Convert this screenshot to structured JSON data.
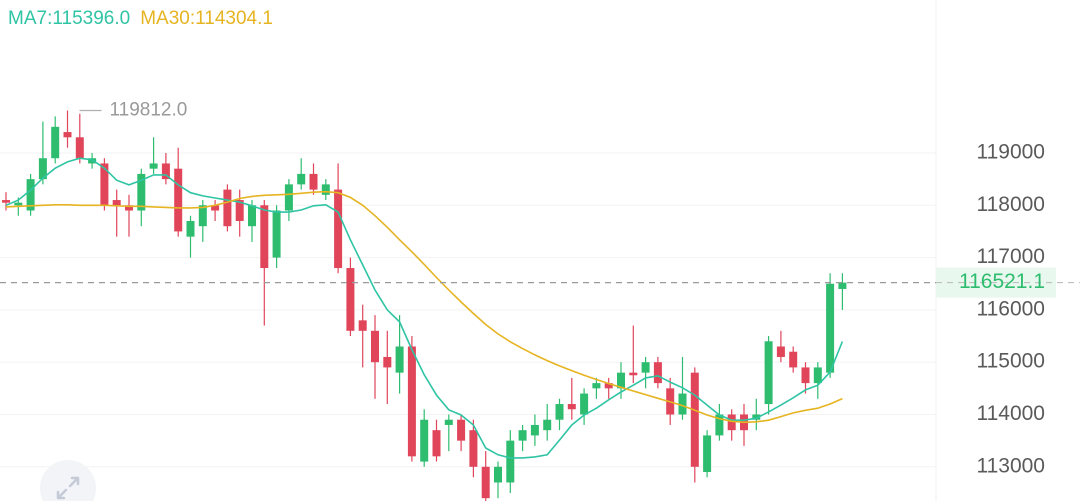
{
  "chart_data": {
    "type": "candlestick",
    "legend": [
      {
        "label": "MA7:115396.0",
        "color": "#2fc4a4"
      },
      {
        "label": "MA30:114304.1",
        "color": "#e6b422"
      }
    ],
    "open": [
      118100,
      118000,
      117900,
      118500,
      118900,
      119400,
      119300,
      118800,
      118800,
      118100,
      118000,
      117900,
      118700,
      118800,
      118700,
      117400,
      117600,
      118000,
      118300,
      118100,
      117600,
      118000,
      117000,
      117900,
      118400,
      118600,
      118200,
      118300,
      116800,
      115800,
      115600,
      115100,
      114800,
      115300,
      113100,
      113700,
      113800,
      113900,
      113700,
      113000,
      112700,
      112700,
      113500,
      113600,
      113700,
      113900,
      114200,
      114000,
      114500,
      114600,
      114500,
      114800,
      114800,
      115000,
      114500,
      114000,
      114800,
      112900,
      113600,
      114000,
      114000,
      113900,
      114200,
      115300,
      115200,
      114900,
      114600,
      114800,
      116400
    ],
    "high": [
      118250,
      118150,
      118600,
      119600,
      119700,
      119812,
      119750,
      119000,
      118900,
      118300,
      118200,
      118700,
      119300,
      119000,
      119100,
      117800,
      118100,
      118100,
      118400,
      118300,
      118100,
      118100,
      118000,
      118500,
      118900,
      118800,
      118500,
      118800,
      117000,
      116100,
      115900,
      115600,
      115900,
      115500,
      114100,
      113900,
      114000,
      114000,
      113900,
      113300,
      113100,
      113700,
      113800,
      114000,
      114200,
      114300,
      114700,
      114500,
      114700,
      114700,
      115000,
      115700,
      115100,
      115100,
      114700,
      115100,
      114900,
      113700,
      114200,
      114100,
      114200,
      114300,
      115500,
      115600,
      115300,
      115000,
      115000,
      116700,
      116700
    ],
    "low": [
      117900,
      117800,
      117800,
      118400,
      118800,
      119100,
      118800,
      118700,
      117900,
      117400,
      117400,
      117600,
      118600,
      118400,
      117400,
      117000,
      117300,
      117700,
      117500,
      117400,
      117300,
      115700,
      116800,
      117700,
      118300,
      118200,
      118100,
      116700,
      115500,
      114900,
      114300,
      114200,
      114400,
      113100,
      113000,
      113100,
      113300,
      113300,
      112800,
      112300,
      112400,
      112500,
      113300,
      113400,
      113500,
      113700,
      113900,
      113800,
      114300,
      114300,
      114300,
      114600,
      114500,
      114500,
      113800,
      113900,
      112700,
      112800,
      113500,
      113500,
      113400,
      113700,
      114000,
      115000,
      114800,
      114400,
      114300,
      114700,
      116000
    ],
    "close": [
      118050,
      118050,
      118500,
      118900,
      119500,
      119300,
      118900,
      118900,
      118000,
      118000,
      117900,
      118600,
      118800,
      118500,
      117500,
      117700,
      118000,
      117900,
      117600,
      117700,
      118000,
      116800,
      117900,
      118400,
      118600,
      118300,
      118400,
      116800,
      115600,
      115600,
      115000,
      114900,
      115300,
      113200,
      113900,
      113200,
      113900,
      113500,
      113000,
      112400,
      113000,
      113500,
      113700,
      113800,
      113900,
      114200,
      114100,
      114400,
      114600,
      114500,
      114800,
      114750,
      115000,
      114600,
      114000,
      114400,
      113000,
      113600,
      114000,
      113700,
      113700,
      114000,
      115400,
      115100,
      114900,
      114600,
      114900,
      116500,
      116521.1
    ],
    "up_color": "#2ebd6f",
    "down_color": "#e0455a",
    "series": [
      {
        "color": "#2fc4a4",
        "values": [
          118000,
          118100,
          118290,
          118520,
          118710,
          118830,
          118900,
          118870,
          118710,
          118480,
          118390,
          118480,
          118580,
          118580,
          118390,
          118240,
          118180,
          118140,
          118100,
          118060,
          117990,
          117910,
          117870,
          117870,
          117910,
          117990,
          118010,
          117870,
          117340,
          116860,
          116380,
          116000,
          115770,
          115240,
          114760,
          114370,
          114090,
          113990,
          113800,
          113360,
          113230,
          113170,
          113170,
          113190,
          113230,
          113510,
          113800,
          113990,
          114120,
          114280,
          114430,
          114560,
          114700,
          114740,
          114620,
          114510,
          114370,
          114180,
          113990,
          113890,
          113890,
          113930,
          114050,
          114180,
          114320,
          114470,
          114560,
          114810,
          115396
        ]
      },
      {
        "color": "#e6b422",
        "values": [
          117970,
          117980,
          117990,
          118000,
          118010,
          118010,
          118000,
          118000,
          118000,
          117990,
          117980,
          117980,
          117970,
          117960,
          117950,
          117950,
          117960,
          118000,
          118060,
          118130,
          118170,
          118190,
          118200,
          118210,
          118230,
          118250,
          118260,
          118240,
          118150,
          118000,
          117800,
          117580,
          117340,
          117110,
          116870,
          116620,
          116380,
          116150,
          115930,
          115720,
          115540,
          115390,
          115260,
          115140,
          115030,
          114930,
          114840,
          114750,
          114670,
          114590,
          114520,
          114450,
          114380,
          114310,
          114240,
          114170,
          114080,
          113990,
          113920,
          113870,
          113850,
          113860,
          113890,
          113960,
          114030,
          114080,
          114120,
          114200,
          114304.1
        ]
      }
    ],
    "last_price": 116521.1,
    "max_marker": {
      "value": 119812,
      "label": "119812.0"
    },
    "ylim": [
      112346,
      121925
    ],
    "yticks": [
      113000,
      114000,
      115000,
      116000,
      117000,
      118000,
      119000
    ],
    "grid": true
  }
}
